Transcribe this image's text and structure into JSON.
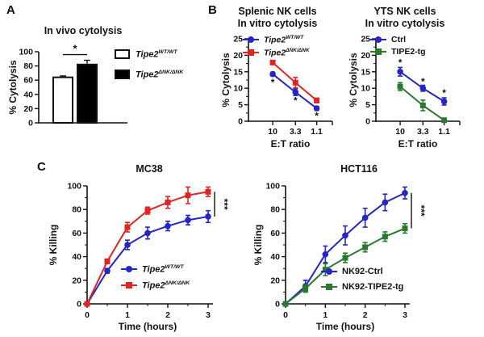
{
  "figure": {
    "panel_a_label": "A",
    "panel_b_label": "B",
    "panel_c_label": "C"
  },
  "chart_data": [
    {
      "id": "invivo",
      "type": "bar",
      "title": "In vivo cytolysis",
      "ylabel": "% Cytolysis",
      "ylim": [
        0,
        100
      ],
      "yticks": [
        0,
        20,
        40,
        60,
        80,
        100
      ],
      "categories": [
        {
          "base": "Tipe2",
          "sup": "WT/WT"
        },
        {
          "base": "Tipe2",
          "sup": "ΔNK/ΔNK"
        }
      ],
      "values": [
        64,
        82
      ],
      "errors": [
        2,
        6
      ],
      "bar_colors": [
        "#ffffff",
        "#000000"
      ],
      "significance": "*",
      "legend_position": "right"
    },
    {
      "id": "splenic",
      "type": "line",
      "title": "Splenic NK cells",
      "subtitle": "In vitro cytolysis",
      "xlabel": "E:T ratio",
      "ylabel": "% Cytolysis",
      "ylim": [
        0,
        25
      ],
      "yticks": [
        0,
        5,
        10,
        15,
        20,
        25
      ],
      "yticks_minor": [
        2.5,
        7.5,
        12.5,
        17.5,
        22.5
      ],
      "categories": [
        "10",
        "3.3",
        "1.1"
      ],
      "series": [
        {
          "label": {
            "base": "Tipe2",
            "sup": "WT/WT"
          },
          "color": "#2525c6",
          "marker": "circle",
          "values": [
            14.3,
            8.8,
            3.9
          ],
          "errors": [
            0.6,
            1.0,
            0.6
          ]
        },
        {
          "label": {
            "base": "Tipe2",
            "sup": "ΔNK/ΔNK"
          },
          "color": "#e02424",
          "marker": "square",
          "values": [
            17.8,
            11.7,
            6.3
          ],
          "errors": [
            0.6,
            1.6,
            0.7
          ]
        }
      ],
      "asterisks": [
        {
          "x": 0,
          "y": 11.7
        },
        {
          "x": 1,
          "y": 6.1
        },
        {
          "x": 2,
          "y": 1.5
        }
      ],
      "legend_position": "top-left"
    },
    {
      "id": "yts",
      "type": "line",
      "title": "YTS NK cells",
      "subtitle": "In vitro cytolysis",
      "xlabel": "E:T ratio",
      "ylabel": "% Cytolysis",
      "ylim": [
        0,
        25
      ],
      "yticks": [
        0,
        5,
        10,
        15,
        20,
        25
      ],
      "yticks_minor": [
        2.5,
        7.5,
        12.5,
        17.5,
        22.5
      ],
      "categories": [
        "10",
        "3.3",
        "1.1"
      ],
      "series": [
        {
          "label": {
            "base": "Ctrl"
          },
          "color": "#2525c6",
          "marker": "circle",
          "values": [
            15,
            10,
            6
          ],
          "errors": [
            1.3,
            0.9,
            1.1
          ]
        },
        {
          "label": {
            "base": "TIPE2-tg"
          },
          "color": "#2a7a2e",
          "marker": "square",
          "values": [
            10.5,
            4.8,
            0.3
          ],
          "errors": [
            1.2,
            1.6,
            0.4
          ]
        }
      ],
      "asterisks": [
        {
          "x": 0,
          "y": 17.6
        },
        {
          "x": 1,
          "y": 11.9
        },
        {
          "x": 2,
          "y": 8.4
        }
      ],
      "legend_position": "top-left"
    },
    {
      "id": "mc38",
      "type": "line",
      "title": "MC38",
      "xlabel": "Time (hours)",
      "ylabel": "% Killing",
      "xlim": [
        0,
        3
      ],
      "xticks": [
        0,
        1,
        2,
        3
      ],
      "xticks_minor": [
        0.5,
        1.5,
        2.5
      ],
      "ylim": [
        0,
        100
      ],
      "yticks": [
        0,
        20,
        40,
        60,
        80,
        100
      ],
      "yticks_minor": [
        10,
        30,
        50,
        70,
        90
      ],
      "x": [
        0,
        0.5,
        1,
        1.5,
        2,
        2.5,
        3
      ],
      "series": [
        {
          "label": {
            "base": "Tipe2",
            "sup": "WT/WT"
          },
          "color": "#2525c6",
          "marker": "circle",
          "values": [
            0,
            28,
            50,
            60,
            66,
            71,
            74
          ],
          "errors": [
            0,
            2,
            4,
            5,
            4,
            4,
            5
          ]
        },
        {
          "label": {
            "base": "Tipe2",
            "sup": "ΔNK/ΔNK"
          },
          "color": "#e02424",
          "marker": "square",
          "values": [
            0,
            36,
            65,
            79,
            86,
            92,
            95
          ],
          "errors": [
            0,
            2,
            4,
            3,
            5,
            7,
            4
          ]
        }
      ],
      "significance": "***",
      "legend_position": "bottom-right"
    },
    {
      "id": "hct116",
      "type": "line",
      "title": "HCT116",
      "xlabel": "Time (hours)",
      "ylabel": "% Killing",
      "xlim": [
        0,
        3
      ],
      "xticks": [
        0,
        1,
        2,
        3
      ],
      "xticks_minor": [
        0.5,
        1.5,
        2.5
      ],
      "ylim": [
        0,
        100
      ],
      "yticks": [
        0,
        20,
        40,
        60,
        80,
        100
      ],
      "yticks_minor": [
        10,
        30,
        50,
        70,
        90
      ],
      "x": [
        0,
        0.5,
        1,
        1.5,
        2,
        2.5,
        3
      ],
      "series": [
        {
          "label": {
            "base": "NK92-Ctrl"
          },
          "color": "#2525c6",
          "marker": "circle",
          "values": [
            0,
            15,
            42,
            58,
            73,
            86,
            94
          ],
          "errors": [
            0,
            5,
            7,
            8,
            8,
            7,
            5
          ]
        },
        {
          "label": {
            "base": "NK92-TIPE2-tg"
          },
          "color": "#2a7a2e",
          "marker": "square",
          "values": [
            0,
            13,
            29,
            39,
            48,
            57,
            64
          ],
          "errors": [
            0,
            3,
            5,
            4,
            4,
            4,
            4
          ]
        }
      ],
      "significance": "***",
      "legend_position": "bottom-right"
    }
  ]
}
